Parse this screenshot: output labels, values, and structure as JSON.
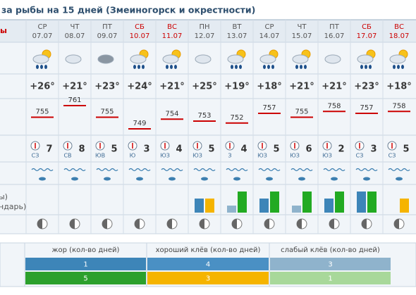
{
  "header": {
    "title": "за рыбы на 15 дней (Змеиногорск и окрестности)"
  },
  "left_labels": [
    {
      "text": "ы",
      "color": "#cc0000"
    },
    {
      "text": "ы)",
      "color": "#555555"
    },
    {
      "text": "ндарь)",
      "color": "#555555"
    }
  ],
  "days": [
    {
      "weekday": "СР",
      "date": "07.07",
      "color": "#555555",
      "temp": "+26°",
      "pressure": 755,
      "wind_dir": "СЗ",
      "wind_speed": 7,
      "bars": [
        {
          "value": 0,
          "color": "#8fb3cc"
        },
        {
          "value": 0,
          "color": "#a8d89a"
        }
      ]
    },
    {
      "weekday": "ЧТ",
      "date": "08.07",
      "color": "#555555",
      "temp": "+21°",
      "pressure": 761,
      "wind_dir": "СВ",
      "wind_speed": 8,
      "bars": [
        {
          "value": 0,
          "color": "#8fb3cc"
        },
        {
          "value": 0,
          "color": "#a8d89a"
        }
      ]
    },
    {
      "weekday": "ПТ",
      "date": "09.07",
      "color": "#555555",
      "temp": "+23°",
      "pressure": 755,
      "wind_dir": "ЮВ",
      "wind_speed": 5,
      "bars": [
        {
          "value": 0,
          "color": "#8fb3cc"
        },
        {
          "value": 0,
          "color": "#a8d89a"
        }
      ]
    },
    {
      "weekday": "СБ",
      "date": "10.07",
      "color": "#cc0000",
      "temp": "+24°",
      "pressure": 749,
      "wind_dir": "Ю",
      "wind_speed": 3,
      "bars": [
        {
          "value": 0,
          "color": "#8fb3cc"
        },
        {
          "value": 0,
          "color": "#a8d89a"
        }
      ]
    },
    {
      "weekday": "ВС",
      "date": "11.07",
      "color": "#cc0000",
      "temp": "+21°",
      "pressure": 754,
      "wind_dir": "ЮЗ",
      "wind_speed": 4,
      "bars": [
        {
          "value": 0,
          "color": "#8fb3cc"
        },
        {
          "value": 0,
          "color": "#a8d89a"
        }
      ]
    },
    {
      "weekday": "ПН",
      "date": "12.07",
      "color": "#555555",
      "temp": "+25°",
      "pressure": 753,
      "wind_dir": "ЮЗ",
      "wind_speed": 5,
      "bars": [
        {
          "value": 2,
          "color": "#3d85b8"
        },
        {
          "value": 2,
          "color": "#f5b400"
        }
      ]
    },
    {
      "weekday": "ВТ",
      "date": "13.07",
      "color": "#555555",
      "temp": "+19°",
      "pressure": 752,
      "wind_dir": "З",
      "wind_speed": 4,
      "bars": [
        {
          "value": 1,
          "color": "#8fb3cc"
        },
        {
          "value": 3,
          "color": "#22aa22"
        }
      ]
    },
    {
      "weekday": "СР",
      "date": "14.07",
      "color": "#555555",
      "temp": "+18°",
      "pressure": 757,
      "wind_dir": "ЮЗ",
      "wind_speed": 5,
      "bars": [
        {
          "value": 2,
          "color": "#3d85b8"
        },
        {
          "value": 3,
          "color": "#22aa22"
        }
      ]
    },
    {
      "weekday": "ЧТ",
      "date": "15.07",
      "color": "#555555",
      "temp": "+21°",
      "pressure": 755,
      "wind_dir": "ЮЗ",
      "wind_speed": 6,
      "bars": [
        {
          "value": 1,
          "color": "#8fb3cc"
        },
        {
          "value": 3,
          "color": "#22aa22"
        }
      ]
    },
    {
      "weekday": "ПТ",
      "date": "16.07",
      "color": "#555555",
      "temp": "+21°",
      "pressure": 758,
      "wind_dir": "ЮЗ",
      "wind_speed": 2,
      "bars": [
        {
          "value": 2,
          "color": "#3d85b8"
        },
        {
          "value": 3,
          "color": "#22aa22"
        }
      ]
    },
    {
      "weekday": "СБ",
      "date": "17.07",
      "color": "#cc0000",
      "temp": "+23°",
      "pressure": 757,
      "wind_dir": "СЗ",
      "wind_speed": 3,
      "bars": [
        {
          "value": 3,
          "color": "#3d85b8"
        },
        {
          "value": 3,
          "color": "#22aa22"
        }
      ]
    },
    {
      "weekday": "ВС",
      "date": "18.07",
      "color": "#cc0000",
      "temp": "+18°",
      "pressure": 758,
      "wind_dir": "СЗ",
      "wind_speed": 5,
      "bars": [
        {
          "value": 0,
          "color": "#8fb3cc"
        },
        {
          "value": 2,
          "color": "#f5b400"
        }
      ]
    }
  ],
  "legend": {
    "headers": [
      "жор (кол-во дней)",
      "хороший клёв (кол-во дней)",
      "слабый клёв (кол-во дней)"
    ],
    "rows": [
      [
        {
          "text": "1",
          "color": "#3d85b8"
        },
        {
          "text": "4",
          "color": "#4a90c4"
        },
        {
          "text": "3",
          "color": "#8fb3cc"
        }
      ],
      [
        {
          "text": "5",
          "color": "#2ca02c"
        },
        {
          "text": "3",
          "color": "#f5b400"
        },
        {
          "text": "1",
          "color": "#a8d89a"
        }
      ]
    ]
  }
}
